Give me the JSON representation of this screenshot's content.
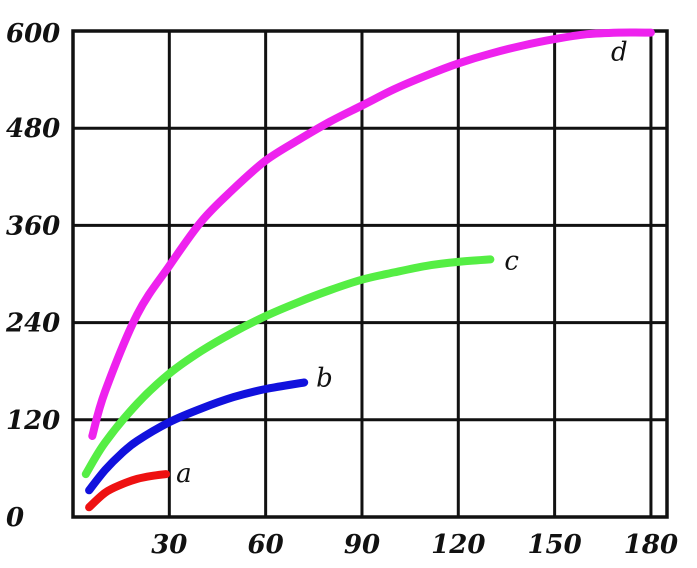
{
  "chart_data": {
    "type": "line",
    "title": "",
    "xlabel": "",
    "ylabel": "",
    "xlim": [
      0,
      185
    ],
    "ylim": [
      0,
      600
    ],
    "grid": true,
    "x_ticks": [
      30,
      60,
      90,
      120,
      150,
      180
    ],
    "x_tick_labels": [
      "30",
      "60",
      "90",
      "120",
      "150",
      "180"
    ],
    "y_ticks": [
      0,
      120,
      240,
      360,
      480,
      600
    ],
    "y_tick_labels": [
      "0",
      "120",
      "240",
      "360",
      "480",
      "600"
    ],
    "series": [
      {
        "name": "a",
        "color": "#ee1111",
        "x": [
          5,
          10,
          15,
          20,
          25,
          29
        ],
        "y": [
          12,
          30,
          40,
          47,
          51,
          53
        ]
      },
      {
        "name": "b",
        "color": "#1111dd",
        "x": [
          5,
          10,
          15,
          20,
          30,
          40,
          50,
          60,
          72
        ],
        "y": [
          33,
          58,
          78,
          94,
          117,
          134,
          148,
          158,
          166
        ]
      },
      {
        "name": "c",
        "color": "#55ee44",
        "x": [
          4,
          10,
          20,
          30,
          40,
          50,
          60,
          70,
          80,
          90,
          100,
          110,
          120,
          130
        ],
        "y": [
          53,
          92,
          140,
          177,
          205,
          228,
          248,
          265,
          280,
          293,
          302,
          310,
          315,
          318
        ]
      },
      {
        "name": "d",
        "color": "#ee22ee",
        "x": [
          6,
          10,
          20,
          30,
          40,
          50,
          60,
          70,
          80,
          90,
          100,
          110,
          120,
          130,
          140,
          150,
          160,
          170,
          180
        ],
        "y": [
          100,
          155,
          250,
          310,
          365,
          405,
          440,
          465,
          488,
          508,
          528,
          545,
          560,
          572,
          582,
          590,
          596,
          598,
          598
        ]
      }
    ]
  }
}
